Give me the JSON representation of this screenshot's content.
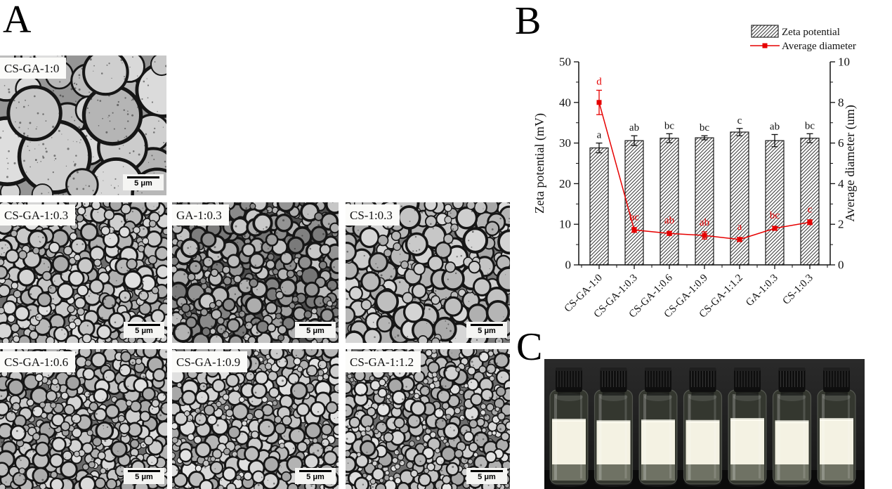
{
  "panel_a": {
    "label": "A",
    "micrographs": [
      {
        "label": "CS-GA-1:0",
        "scale_bar": "5 μm",
        "droplets": "large",
        "render": {
          "seed": 7,
          "count": 30,
          "rmin": 14,
          "rmax": 54,
          "bg": "#969696",
          "swf": 0.13,
          "lo": 70,
          "hi": 88,
          "speck": 260
        }
      },
      {
        "label": "CS-GA-1:0.3",
        "scale_bar": "5 μm",
        "droplets": "small",
        "render": {
          "seed": 11,
          "count": 340,
          "rmin": 4.5,
          "rmax": 13,
          "bg": "#6e6e6e",
          "swf": 0.26,
          "lo": 66,
          "hi": 88,
          "speck": 120
        }
      },
      {
        "label": "GA-1:0.3",
        "scale_bar": "5 μm",
        "droplets": "small, dark",
        "render": {
          "seed": 23,
          "count": 360,
          "rmin": 4,
          "rmax": 13,
          "bg": "#4c4c4c",
          "swf": 0.3,
          "lo": 46,
          "hi": 80,
          "speck": 170
        }
      },
      {
        "label": "CS-1:0.3",
        "scale_bar": "5 μm",
        "droplets": "medium",
        "render": {
          "seed": 31,
          "count": 250,
          "rmin": 5,
          "rmax": 17,
          "bg": "#7a7a7a",
          "swf": 0.24,
          "lo": 66,
          "hi": 86,
          "speck": 120
        }
      },
      {
        "label": "CS-GA-1:0.6",
        "scale_bar": "5 μm",
        "droplets": "small",
        "render": {
          "seed": 41,
          "count": 380,
          "rmin": 4,
          "rmax": 12,
          "bg": "#6a6a6a",
          "swf": 0.27,
          "lo": 64,
          "hi": 88,
          "speck": 140
        }
      },
      {
        "label": "CS-GA-1:0.9",
        "scale_bar": "5 μm",
        "droplets": "small",
        "render": {
          "seed": 53,
          "count": 400,
          "rmin": 3.5,
          "rmax": 12,
          "bg": "#707070",
          "swf": 0.27,
          "lo": 64,
          "hi": 90,
          "speck": 150
        }
      },
      {
        "label": "CS-GA-1:1.2",
        "scale_bar": "5 μm",
        "droplets": "small",
        "render": {
          "seed": 67,
          "count": 430,
          "rmin": 3,
          "rmax": 11,
          "bg": "#6c6c6c",
          "swf": 0.28,
          "lo": 64,
          "hi": 90,
          "speck": 160
        }
      }
    ]
  },
  "panel_b": {
    "label": "B"
  },
  "chart_data": {
    "type": "bar+line",
    "categories": [
      "CS-GA-1:0",
      "CS-GA-1:0.3",
      "CS-GA-1:0.6",
      "CS-GA-1:0.9",
      "CS-GA-1:1.2",
      "GA-1:0.3",
      "CS-1:0.3"
    ],
    "series": [
      {
        "name": "Zeta potential",
        "type": "bar",
        "axis": "left",
        "values": [
          28.8,
          30.6,
          31.2,
          31.3,
          32.7,
          30.6,
          31.2
        ],
        "errors": [
          1.2,
          1.2,
          1.1,
          0.5,
          0.9,
          1.5,
          1.1
        ],
        "letters": [
          "a",
          "ab",
          "bc",
          "bc",
          "c",
          "ab",
          "bc"
        ]
      },
      {
        "name": "Average diameter",
        "type": "line",
        "axis": "right",
        "values": [
          8.0,
          1.72,
          1.55,
          1.45,
          1.25,
          1.8,
          2.1
        ],
        "errors": [
          0.6,
          0.12,
          0.1,
          0.18,
          0.1,
          0.1,
          0.12
        ],
        "letters": [
          "d",
          "bc",
          "ab",
          "ab",
          "a",
          "bc",
          "c"
        ]
      }
    ],
    "left_axis": {
      "label": "Zeta potential (mV)",
      "min": 0,
      "max": 50,
      "major_ticks": [
        0,
        10,
        20,
        30,
        40,
        50
      ],
      "minor_step": 5
    },
    "right_axis": {
      "label": "Average diameter (um)",
      "min": 0,
      "max": 10,
      "major_ticks": [
        0,
        2,
        4,
        6,
        8,
        10
      ],
      "minor_step": 1
    },
    "legend": {
      "position": "top-right",
      "items": [
        "Zeta potential",
        "Average diameter"
      ]
    },
    "grid": false,
    "colors": {
      "bar_fill": "#ffffff",
      "bar_hatch": "#3a3a3a",
      "bar_border": "#1a1a1a",
      "line": "#e60000",
      "text": "#111111"
    }
  },
  "panel_c": {
    "label": "C",
    "vial_count": 7
  }
}
